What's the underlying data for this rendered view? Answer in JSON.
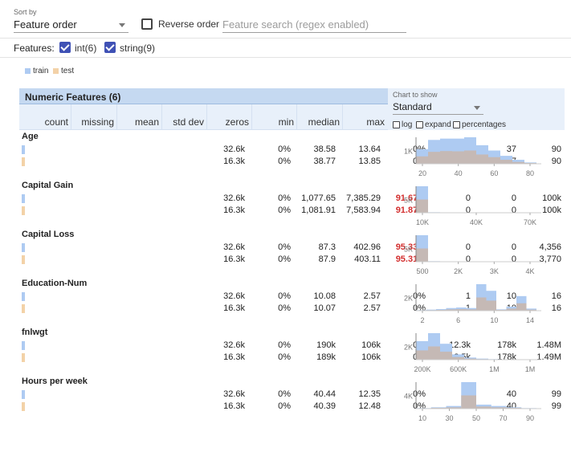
{
  "toolbar": {
    "sort_label": "Sort by",
    "sort_value": "Feature order",
    "reverse_label": "Reverse order",
    "search_placeholder": "Feature search (regex enabled)"
  },
  "features_bar": {
    "label": "Features:",
    "int_label": "int(6)",
    "string_label": "string(9)"
  },
  "legend": {
    "train": "train",
    "test": "test"
  },
  "colors": {
    "train": "#aecbf2",
    "test": "#f3d2a8",
    "overlap": "#c9b6aa",
    "accent": "#3f51b5",
    "header": "#c5d9f1"
  },
  "panel": {
    "title": "Numeric Features (6)",
    "chart_to_show_label": "Chart to show",
    "chart_value": "Standard",
    "opt_log": "log",
    "opt_expand": "expand",
    "opt_percentages": "percentages",
    "columns": [
      "count",
      "missing",
      "mean",
      "std dev",
      "zeros",
      "min",
      "median",
      "max"
    ]
  },
  "features": [
    {
      "name": "Age",
      "rows": [
        [
          "32.6k",
          "0%",
          "38.58",
          "13.64",
          "0%",
          "17",
          "37",
          "90"
        ],
        [
          "16.3k",
          "0%",
          "38.77",
          "13.85",
          "0%",
          "17",
          "37",
          "90"
        ]
      ],
      "zeros_highlight": false
    },
    {
      "name": "Capital Gain",
      "rows": [
        [
          "32.6k",
          "0%",
          "1,077.65",
          "7,385.29",
          "91.67%",
          "0",
          "0",
          "100k"
        ],
        [
          "16.3k",
          "0%",
          "1,081.91",
          "7,583.94",
          "91.87%",
          "0",
          "0",
          "100k"
        ]
      ],
      "zeros_highlight": true
    },
    {
      "name": "Capital Loss",
      "rows": [
        [
          "32.6k",
          "0%",
          "87.3",
          "402.96",
          "95.33%",
          "0",
          "0",
          "4,356"
        ],
        [
          "16.3k",
          "0%",
          "87.9",
          "403.11",
          "95.31%",
          "0",
          "0",
          "3,770"
        ]
      ],
      "zeros_highlight": true
    },
    {
      "name": "Education-Num",
      "rows": [
        [
          "32.6k",
          "0%",
          "10.08",
          "2.57",
          "0%",
          "1",
          "10",
          "16"
        ],
        [
          "16.3k",
          "0%",
          "10.07",
          "2.57",
          "0%",
          "1",
          "10",
          "16"
        ]
      ],
      "zeros_highlight": false
    },
    {
      "name": "fnlwgt",
      "rows": [
        [
          "32.6k",
          "0%",
          "190k",
          "106k",
          "0%",
          "12.3k",
          "178k",
          "1.48M"
        ],
        [
          "16.3k",
          "0%",
          "189k",
          "106k",
          "0%",
          "13.5k",
          "178k",
          "1.49M"
        ]
      ],
      "zeros_highlight": false
    },
    {
      "name": "Hours per week",
      "rows": [
        [
          "32.6k",
          "0%",
          "40.44",
          "12.35",
          "0%",
          "1",
          "40",
          "99"
        ],
        [
          "16.3k",
          "0%",
          "40.39",
          "12.48",
          "0%",
          "1",
          "40",
          "99"
        ]
      ],
      "zeros_highlight": false
    }
  ],
  "histograms": [
    {
      "ytick": "1K",
      "xticks": [
        "20",
        "40",
        "60",
        "80"
      ],
      "train": [
        0.55,
        0.9,
        0.95,
        0.95,
        1.0,
        0.7,
        0.5,
        0.3,
        0.15,
        0.05
      ],
      "test": [
        0.28,
        0.45,
        0.48,
        0.47,
        0.5,
        0.35,
        0.25,
        0.15,
        0.07,
        0.03
      ]
    },
    {
      "ytick": "5K",
      "xticks": [
        "10K",
        "40K",
        "70K"
      ],
      "train": [
        1.0,
        0.02,
        0.01,
        0.0,
        0.0,
        0.0,
        0.0,
        0.0,
        0.0,
        0.0
      ],
      "test": [
        0.5,
        0.01,
        0.0,
        0.0,
        0.0,
        0.0,
        0.0,
        0.0,
        0.0,
        0.0
      ]
    },
    {
      "ytick": "5K",
      "xticks": [
        "500",
        "2K",
        "3K",
        "4K"
      ],
      "train": [
        1.0,
        0.02,
        0.01,
        0.0,
        0.0,
        0.0,
        0.0,
        0.0,
        0.0,
        0.0
      ],
      "test": [
        0.5,
        0.01,
        0.0,
        0.0,
        0.0,
        0.0,
        0.0,
        0.0,
        0.0,
        0.0
      ]
    },
    {
      "ytick": "2K",
      "xticks": [
        "2",
        "6",
        "10",
        "14"
      ],
      "train": [
        0.02,
        0.04,
        0.06,
        0.1,
        0.12,
        0.1,
        1.0,
        0.75,
        0.05,
        0.15,
        0.55,
        0.08
      ],
      "test": [
        0.01,
        0.02,
        0.03,
        0.05,
        0.06,
        0.05,
        0.5,
        0.38,
        0.03,
        0.08,
        0.28,
        0.04
      ]
    },
    {
      "ytick": "2K",
      "xticks": [
        "200K",
        "600K",
        "1M",
        "1M"
      ],
      "train": [
        0.7,
        1.0,
        0.6,
        0.2,
        0.08,
        0.04,
        0.02,
        0.01,
        0.0,
        0.0
      ],
      "test": [
        0.35,
        0.5,
        0.3,
        0.1,
        0.04,
        0.02,
        0.01,
        0.0,
        0.0,
        0.0
      ]
    },
    {
      "ytick": "4K",
      "xticks": [
        "10",
        "30",
        "50",
        "70",
        "90"
      ],
      "train": [
        0.02,
        0.05,
        0.1,
        1.0,
        0.15,
        0.1,
        0.05,
        0.02
      ],
      "test": [
        0.01,
        0.03,
        0.05,
        0.5,
        0.08,
        0.05,
        0.03,
        0.01
      ]
    }
  ]
}
